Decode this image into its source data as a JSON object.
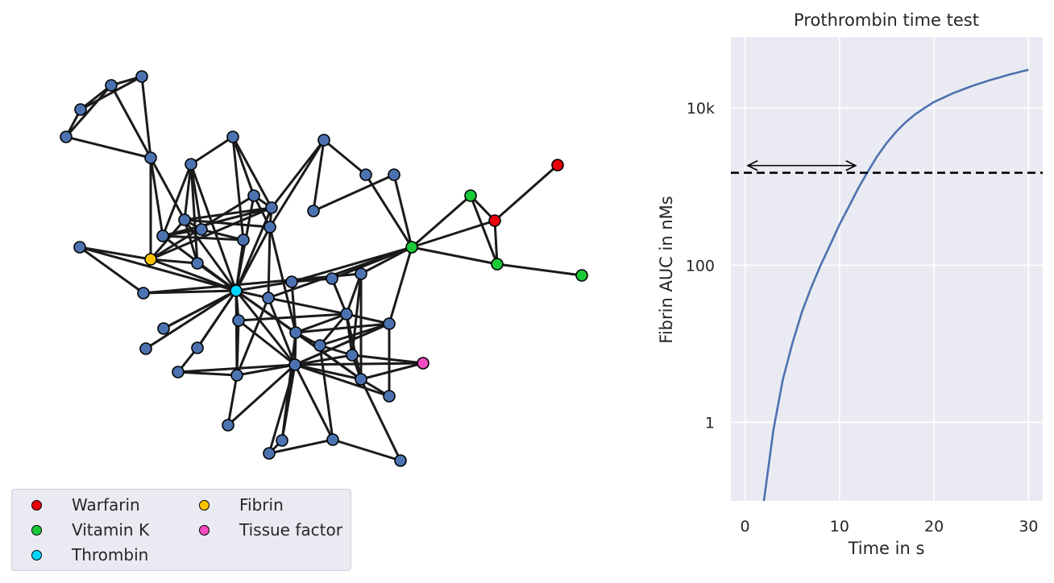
{
  "network": {
    "legend": [
      {
        "label": "Warfarin",
        "color": "#e8000b"
      },
      {
        "label": "Vitamin K",
        "color": "#1ac938"
      },
      {
        "label": "Thrombin",
        "color": "#00d7ff"
      },
      {
        "label": "Fibrin",
        "color": "#ffc400"
      },
      {
        "label": "Tissue factor",
        "color": "#f14cc1"
      }
    ],
    "default_node_color": "#4c72b0",
    "edge_color": "#1a1a1a"
  },
  "chart_data": {
    "type": "line",
    "title": "Prothrombin time test",
    "xlabel": "Time in s",
    "ylabel": "Fibrin AUC in nMs",
    "xlim": [
      -1.5,
      31.5
    ],
    "yscale": "log",
    "ylim": [
      0.1,
      80000
    ],
    "xticks": [
      0,
      10,
      20,
      30
    ],
    "yticks": [
      {
        "value": 1,
        "label": "1"
      },
      {
        "value": 100,
        "label": "100"
      },
      {
        "value": 10000,
        "label": "10k"
      }
    ],
    "grid": true,
    "background": "#eaeaf2",
    "series": [
      {
        "color": "#4c72b0",
        "x": [
          2,
          3,
          4,
          5,
          6,
          7,
          8,
          9,
          10,
          11,
          12,
          13,
          14,
          15,
          16,
          17,
          18,
          19,
          20,
          22,
          24,
          26,
          28,
          30
        ],
        "y": [
          0.1,
          0.8,
          3.5,
          10,
          25,
          52,
          100,
          180,
          330,
          560,
          960,
          1550,
          2450,
          3600,
          5000,
          6600,
          8300,
          10000,
          11900,
          15400,
          19000,
          22800,
          26700,
          30700
        ]
      }
    ],
    "threshold": {
      "y": 1500,
      "style": "dashed",
      "color": "#000000"
    },
    "arrow": {
      "x_start": 0.3,
      "x_end": 11.7,
      "y": 1850
    }
  }
}
